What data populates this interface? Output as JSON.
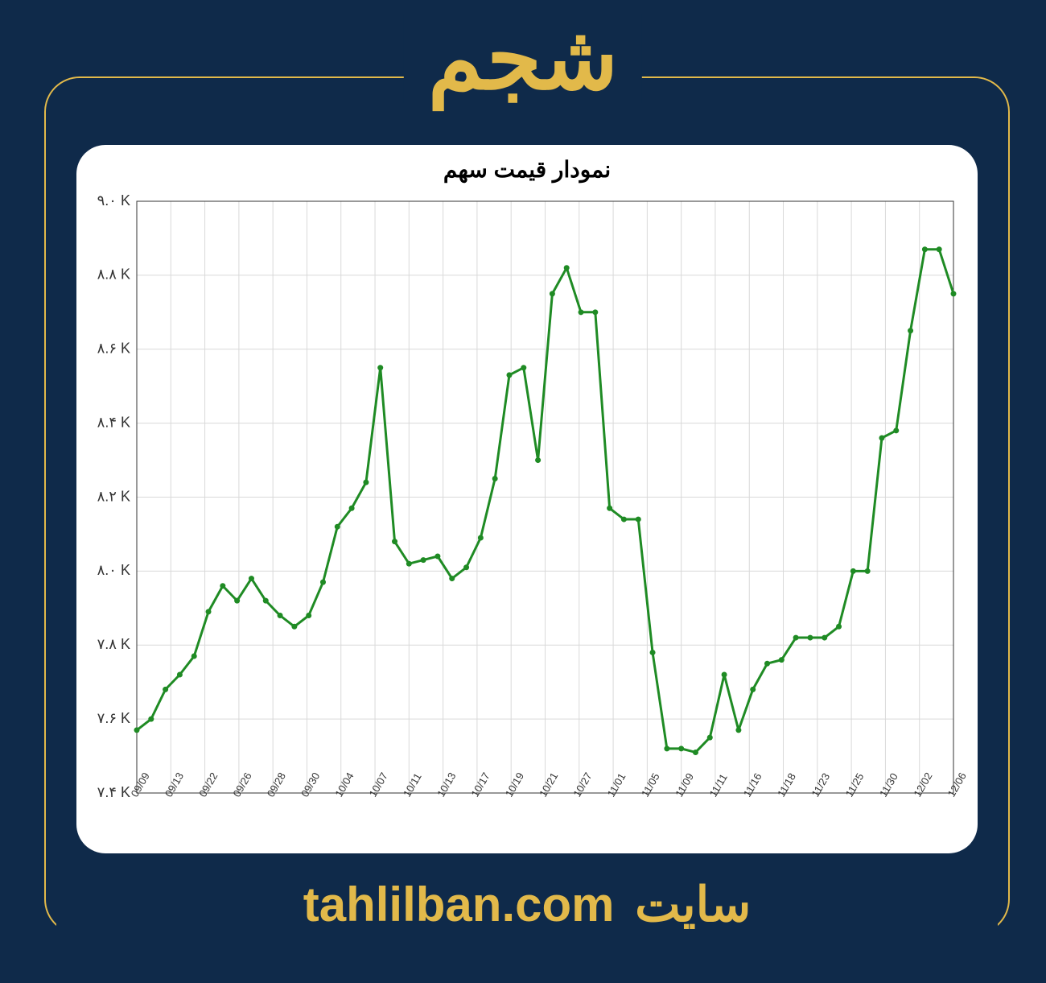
{
  "page": {
    "bg_color": "#0f2a4a",
    "frame_border_color": "#e2b94a",
    "accent_color": "#e2b94a",
    "header_text": "شجم",
    "footer_site_label": "سایت",
    "footer_site_url": "tahlilban.com"
  },
  "chart": {
    "type": "line",
    "title": "نمودار قیمت سهم",
    "title_color": "#000000",
    "title_fontsize": 28,
    "background_color": "#ffffff",
    "line_color": "#1f8b24",
    "line_width": 3,
    "marker_radius": 3.5,
    "marker_color": "#1f8b24",
    "grid_color": "#d9d9d9",
    "axis_color": "#333333",
    "tick_label_color": "#333333",
    "tick_fontsize_y": 18,
    "tick_fontsize_x": 13,
    "ylim": [
      7.4,
      9.0
    ],
    "y_ticks": [
      {
        "v": 7.4,
        "label": "٧.۴ K"
      },
      {
        "v": 7.6,
        "label": "٧.۶ K"
      },
      {
        "v": 7.8,
        "label": "٧.٨ K"
      },
      {
        "v": 8.0,
        "label": "٨.٠ K"
      },
      {
        "v": 8.2,
        "label": "٨.٢ K"
      },
      {
        "v": 8.4,
        "label": "٨.۴ K"
      },
      {
        "v": 8.6,
        "label": "٨.۶ K"
      },
      {
        "v": 8.8,
        "label": "٨.٨ K"
      },
      {
        "v": 9.0,
        "label": "٩.٠ K"
      }
    ],
    "x_tick_labels": [
      "09/09",
      "09/13",
      "09/22",
      "09/26",
      "09/28",
      "09/30",
      "10/04",
      "10/07",
      "10/11",
      "10/13",
      "10/17",
      "10/19",
      "10/21",
      "10/27",
      "11/01",
      "11/05",
      "11/09",
      "11/11",
      "11/16",
      "11/18",
      "11/23",
      "11/25",
      "11/30",
      "12/02",
      "12/06"
    ],
    "values": [
      7.57,
      7.6,
      7.68,
      7.72,
      7.77,
      7.89,
      7.96,
      7.92,
      7.98,
      7.92,
      7.88,
      7.85,
      7.88,
      7.97,
      8.12,
      8.17,
      8.24,
      8.55,
      8.08,
      8.02,
      8.03,
      8.04,
      7.98,
      8.01,
      8.09,
      8.25,
      8.53,
      8.55,
      8.3,
      8.75,
      8.82,
      8.7,
      8.7,
      8.17,
      8.14,
      8.14,
      7.78,
      7.52,
      7.52,
      7.51,
      7.55,
      7.72,
      7.57,
      7.68,
      7.75,
      7.76,
      7.82,
      7.82,
      7.82,
      7.85,
      8.0,
      8.0,
      8.36,
      8.38,
      8.65,
      8.87,
      8.87,
      8.75
    ]
  }
}
